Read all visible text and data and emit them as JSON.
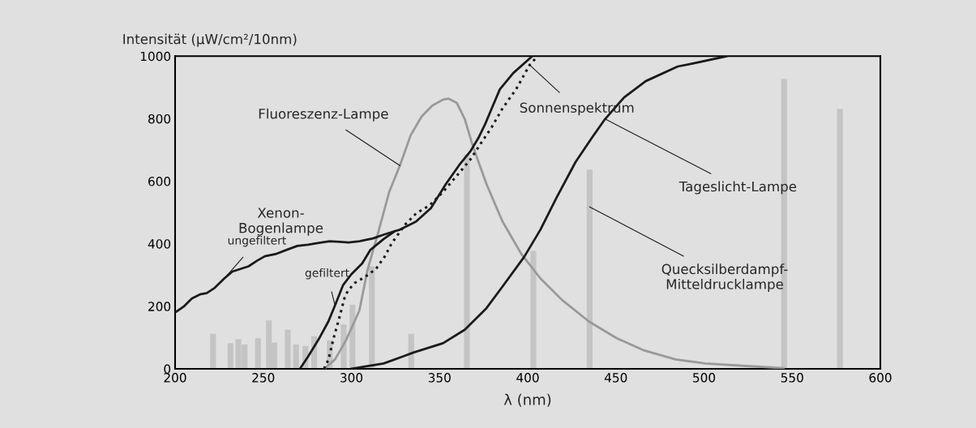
{
  "chart_data": {
    "type": "line",
    "xlabel": "λ (nm)",
    "ylabel": "Intensität (μW/cm²/10nm)",
    "xlim": [
      200,
      600
    ],
    "xticks": [
      200,
      250,
      300,
      350,
      400,
      450,
      500,
      550,
      600
    ],
    "ylim": [
      0,
      1000
    ],
    "yticks": [
      0,
      200,
      400,
      600,
      800,
      1000
    ],
    "grid": false,
    "series": [
      {
        "type": "bar",
        "color": "#c4c4c4",
        "x": [
          221.5,
          231.4,
          235.9,
          239.4,
          247,
          253.2,
          256.2,
          263.9,
          268.6,
          273.9,
          278.9,
          287.7,
          295.6,
          300.6,
          311.6,
          333.9,
          365.5,
          403.2,
          435.1,
          545.4,
          577.1
        ],
        "values": [
          112,
          82,
          95,
          78,
          98,
          155,
          84,
          125,
          78,
          73,
          104,
          91,
          142,
          205,
          328,
          112,
          686,
          377,
          637,
          927,
          831
        ]
      },
      {
        "color": "#999999",
        "line_style": "solid",
        "x": [
          284.6,
          290.7,
          296.9,
          304.5,
          309.1,
          315.2,
          321.4,
          327.5,
          333.6,
          339.8,
          345.9,
          352,
          355.1,
          359.7,
          364.3,
          368.9,
          376.6,
          385.7,
          396.4,
          407.2,
          419.5,
          434.8,
          450.1,
          465.4,
          483.8,
          500.7,
          523.7,
          545.2
        ],
        "values": [
          0,
          30,
          91,
          186,
          315,
          436,
          565,
          650,
          747,
          807,
          842,
          861,
          864,
          851,
          799,
          712,
          591,
          471,
          367,
          289,
          220,
          151,
          99,
          60,
          30,
          17,
          9,
          2
        ]
      },
      {
        "color": "#1a1a1a",
        "line_style": "solid",
        "x": [
          200.3,
          204.9,
          209.5,
          214.1,
          217.9,
          222.5,
          227.9,
          232.5,
          241.7,
          246.3,
          250.9,
          257,
          263.1,
          269.3,
          275.4,
          281.5,
          287.7,
          293.8,
          298.4,
          304.5,
          312.2,
          318.3,
          324.5,
          327.5,
          336.7,
          345.1,
          353.6,
          361.2,
          367.4,
          372,
          375.8,
          379.6,
          384.2,
          391.8,
          402.6
        ],
        "values": [
          181,
          199,
          225,
          238,
          242,
          259,
          289,
          311,
          328,
          345,
          360,
          367,
          380,
          393,
          397,
          403,
          408,
          406,
          404,
          408,
          417,
          429,
          440,
          445,
          471,
          514,
          591,
          652,
          695,
          738,
          782,
          833,
          894,
          946,
          1000
        ]
      },
      {
        "color": "#1a1a1a",
        "line_style": "solid",
        "x": [
          270.8,
          275.4,
          281.5,
          286.9,
          290.7,
          295.3,
          299.9,
          306.1,
          310.7,
          318.3,
          324.5
        ],
        "values": [
          0,
          39,
          95,
          151,
          203,
          268,
          302,
          337,
          380,
          415,
          440
        ]
      },
      {
        "color": "#1a1a1a",
        "line_style": "dotted",
        "x": [
          284.5,
          287,
          290,
          293,
          296,
          298,
          302,
          308,
          314,
          319,
          322.9,
          330.6,
          336.7,
          344.4,
          352,
          359.7,
          367.4,
          373.4,
          379.6,
          385.7,
          393.4,
          401.1,
          405.7
        ],
        "values": [
          0,
          30,
          100,
          160,
          225,
          250,
          275,
          295,
          320,
          360,
          402,
          462,
          497,
          523,
          566,
          617,
          669,
          721,
          773,
          833,
          894,
          972,
          1000
        ]
      },
      {
        "color": "#1a1a1a",
        "line_style": "solid",
        "x": [
          300,
          318.3,
          328.9,
          335.2,
          352,
          364.3,
          376.6,
          385.7,
          398,
          407.2,
          416.4,
          427.1,
          436.3,
          443.9,
          454.7,
          466.9,
          485.1,
          493,
          512.9
        ],
        "values": [
          0,
          17,
          39,
          52,
          82,
          125,
          194,
          263,
          358,
          445,
          548,
          661,
          738,
          799,
          868,
          920,
          967,
          976,
          1000
        ]
      }
    ],
    "annotations": [
      {
        "text": "Fluoreszenz-Lampe",
        "x": 327.5,
        "y": 650
      },
      {
        "text": "Sonnenspektrum",
        "x": 401.1,
        "y": 972
      },
      {
        "text": "Tageslicht-Lampe",
        "x": 443.9,
        "y": 799
      },
      {
        "text": "Quecksilberdampf-\nMitteldrucklampe",
        "x": 435.1,
        "y": 518
      },
      "Xenon-\nBogenlampe",
      {
        "text": "ungefiltert",
        "x": 227.9,
        "y": 289
      },
      {
        "text": "gefiltert",
        "x": 290.7,
        "y": 203
      }
    ]
  }
}
